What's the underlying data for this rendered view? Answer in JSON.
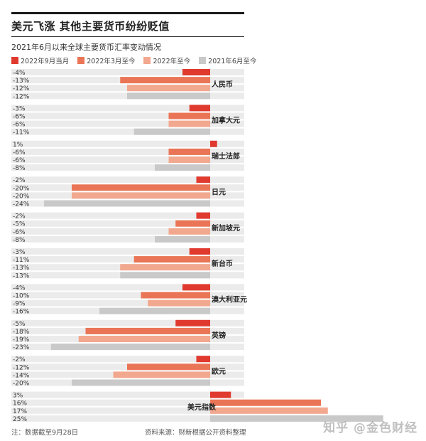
{
  "title": "美元飞涨  其他主要货币纷纷贬值",
  "subtitle": "2021年6月以来全球主要货币汇率变动情况",
  "colors": {
    "series": [
      "#e03a2f",
      "#ea7556",
      "#f2a88e",
      "#c9c9c9"
    ],
    "track": "#ebebeb"
  },
  "chart_data": {
    "type": "bar",
    "orientation": "horizontal",
    "unit": "%",
    "series": [
      {
        "name": "2022年9月当月",
        "values": [
          -4,
          -3,
          1,
          -2,
          -2,
          -3,
          -4,
          -5,
          -2,
          3
        ]
      },
      {
        "name": "2022年3月至今",
        "values": [
          -13,
          -6,
          -6,
          -20,
          -5,
          -11,
          -10,
          -18,
          -12,
          16
        ]
      },
      {
        "name": "2022年至今",
        "values": [
          -12,
          -6,
          -6,
          -20,
          -6,
          -13,
          -9,
          -19,
          -14,
          17
        ]
      },
      {
        "name": "2021年6月至今",
        "values": [
          -12,
          -11,
          -8,
          -24,
          -8,
          -13,
          -16,
          -23,
          -20,
          25
        ]
      }
    ],
    "categories": [
      "人民币",
      "加拿大元",
      "瑞士法郎",
      "日元",
      "新加坡元",
      "新台币",
      "澳大利亚元",
      "英镑",
      "欧元",
      "美元指数"
    ],
    "value_labels": [
      [
        "-4%",
        "-13%",
        "-12%",
        "-12%"
      ],
      [
        "-3%",
        "-6%",
        "-6%",
        "-11%"
      ],
      [
        "1%",
        "-6%",
        "-6%",
        "-8%"
      ],
      [
        "-2%",
        "-20%",
        "-20%",
        "-24%"
      ],
      [
        "-2%",
        "-5%",
        "-6%",
        "-8%"
      ],
      [
        "-3%",
        "-11%",
        "-13%",
        "-13%"
      ],
      [
        "-4%",
        "-10%",
        "-9%",
        "-16%"
      ],
      [
        "-5%",
        "-18%",
        "-19%",
        "-23%"
      ],
      [
        "-2%",
        "-12%",
        "-14%",
        "-20%"
      ],
      [
        "3%",
        "16%",
        "17%",
        "25%"
      ]
    ]
  },
  "footer": {
    "note": "注：数据截至9月28日",
    "source": "资料来源：财新根据公开资料整理"
  },
  "watermark": "知乎 @金色财经"
}
